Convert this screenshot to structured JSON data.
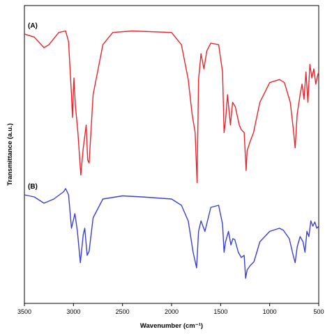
{
  "chart_data": {
    "type": "line",
    "xlabel": "Wavenumber (cm⁻¹)",
    "ylabel": "Transmittance (a.u.)",
    "xlim": [
      3500,
      500
    ],
    "x_ticks": [
      "3500",
      "3000",
      "2500",
      "2000",
      "1500",
      "1000",
      "500"
    ],
    "y_ticks_shown": false,
    "grid": false,
    "series": [
      {
        "name": "(A)",
        "color": "#e8242c",
        "points": [
          [
            3500,
            0.95
          ],
          [
            3400,
            0.93
          ],
          [
            3300,
            0.86
          ],
          [
            3250,
            0.88
          ],
          [
            3150,
            0.96
          ],
          [
            3080,
            0.97
          ],
          [
            3050,
            0.9
          ],
          [
            3020,
            0.55
          ],
          [
            3010,
            0.4
          ],
          [
            2995,
            0.66
          ],
          [
            2980,
            0.48
          ],
          [
            2955,
            0.3
          ],
          [
            2925,
            0.02
          ],
          [
            2900,
            0.2
          ],
          [
            2870,
            0.35
          ],
          [
            2855,
            0.12
          ],
          [
            2840,
            0.1
          ],
          [
            2800,
            0.55
          ],
          [
            2700,
            0.88
          ],
          [
            2600,
            0.96
          ],
          [
            2400,
            0.97
          ],
          [
            2000,
            0.96
          ],
          [
            1900,
            0.88
          ],
          [
            1830,
            0.65
          ],
          [
            1790,
            0.42
          ],
          [
            1760,
            0.3
          ],
          [
            1740,
            -0.03
          ],
          [
            1725,
            0.65
          ],
          [
            1700,
            0.82
          ],
          [
            1670,
            0.72
          ],
          [
            1640,
            0.84
          ],
          [
            1600,
            0.89
          ],
          [
            1520,
            0.88
          ],
          [
            1480,
            0.7
          ],
          [
            1465,
            0.3
          ],
          [
            1450,
            0.38
          ],
          [
            1430,
            0.55
          ],
          [
            1400,
            0.35
          ],
          [
            1378,
            0.5
          ],
          [
            1350,
            0.47
          ],
          [
            1310,
            0.35
          ],
          [
            1290,
            0.32
          ],
          [
            1260,
            0.3
          ],
          [
            1240,
            0.05
          ],
          [
            1230,
            0.18
          ],
          [
            1200,
            0.24
          ],
          [
            1165,
            0.3
          ],
          [
            1100,
            0.5
          ],
          [
            1000,
            0.63
          ],
          [
            900,
            0.65
          ],
          [
            850,
            0.63
          ],
          [
            790,
            0.5
          ],
          [
            760,
            0.33
          ],
          [
            740,
            0.2
          ],
          [
            720,
            0.42
          ],
          [
            690,
            0.55
          ],
          [
            670,
            0.62
          ],
          [
            650,
            0.52
          ],
          [
            630,
            0.7
          ],
          [
            610,
            0.5
          ],
          [
            590,
            0.75
          ],
          [
            570,
            0.66
          ],
          [
            550,
            0.72
          ],
          [
            530,
            0.62
          ],
          [
            510,
            0.68
          ],
          [
            500,
            0.7
          ]
        ]
      },
      {
        "name": "(B)",
        "color": "#3b3fd0",
        "points": [
          [
            3500,
            0.9
          ],
          [
            3400,
            0.88
          ],
          [
            3300,
            0.82
          ],
          [
            3200,
            0.86
          ],
          [
            3100,
            0.93
          ],
          [
            3080,
            0.96
          ],
          [
            3050,
            0.9
          ],
          [
            3020,
            0.58
          ],
          [
            3000,
            0.66
          ],
          [
            2985,
            0.72
          ],
          [
            2960,
            0.55
          ],
          [
            2930,
            0.25
          ],
          [
            2900,
            0.52
          ],
          [
            2885,
            0.58
          ],
          [
            2860,
            0.32
          ],
          [
            2840,
            0.36
          ],
          [
            2800,
            0.68
          ],
          [
            2700,
            0.86
          ],
          [
            2500,
            0.89
          ],
          [
            2300,
            0.88
          ],
          [
            2000,
            0.86
          ],
          [
            1900,
            0.8
          ],
          [
            1830,
            0.65
          ],
          [
            1780,
            0.35
          ],
          [
            1745,
            0.2
          ],
          [
            1725,
            0.55
          ],
          [
            1700,
            0.65
          ],
          [
            1680,
            0.6
          ],
          [
            1660,
            0.55
          ],
          [
            1600,
            0.78
          ],
          [
            1520,
            0.8
          ],
          [
            1480,
            0.62
          ],
          [
            1465,
            0.35
          ],
          [
            1450,
            0.45
          ],
          [
            1420,
            0.55
          ],
          [
            1395,
            0.42
          ],
          [
            1375,
            0.48
          ],
          [
            1355,
            0.47
          ],
          [
            1320,
            0.35
          ],
          [
            1290,
            0.3
          ],
          [
            1260,
            0.32
          ],
          [
            1245,
            0.1
          ],
          [
            1230,
            0.18
          ],
          [
            1200,
            0.22
          ],
          [
            1160,
            0.26
          ],
          [
            1100,
            0.45
          ],
          [
            1000,
            0.55
          ],
          [
            900,
            0.58
          ],
          [
            860,
            0.56
          ],
          [
            800,
            0.48
          ],
          [
            760,
            0.32
          ],
          [
            740,
            0.25
          ],
          [
            720,
            0.4
          ],
          [
            690,
            0.5
          ],
          [
            660,
            0.45
          ],
          [
            640,
            0.35
          ],
          [
            620,
            0.55
          ],
          [
            600,
            0.5
          ],
          [
            580,
            0.65
          ],
          [
            560,
            0.6
          ],
          [
            540,
            0.64
          ],
          [
            520,
            0.58
          ],
          [
            500,
            0.6
          ]
        ]
      }
    ],
    "annotations": [
      "(A)",
      "(B)"
    ]
  }
}
